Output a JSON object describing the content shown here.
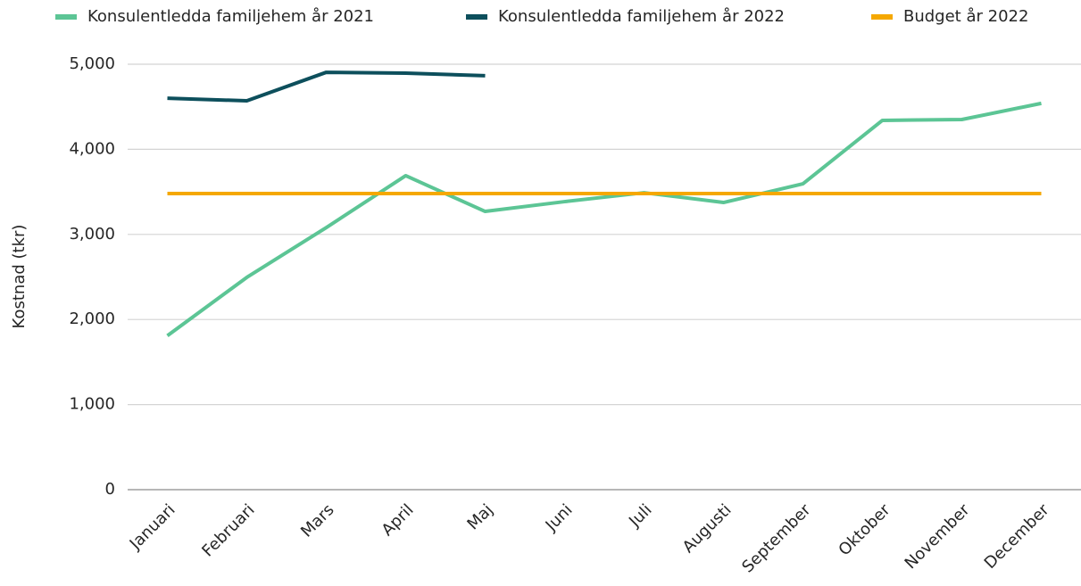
{
  "chart_data": {
    "type": "line",
    "y_label": "Kostnad (tkr)",
    "categories": [
      "Januari",
      "Februari",
      "Mars",
      "April",
      "Maj",
      "Juni",
      "Juli",
      "Augusti",
      "September",
      "Oktober",
      "November",
      "December"
    ],
    "series": [
      {
        "name": "Konsulentledda familjehem år 2021",
        "color": "#5cc595",
        "values": [
          1810,
          2495,
          3080,
          3690,
          3270,
          3385,
          3490,
          3375,
          3595,
          4340,
          4350,
          4540
        ]
      },
      {
        "name": "Konsulentledda familjehem år 2022",
        "color": "#0d4f5c",
        "values": [
          4600,
          4570,
          4905,
          4895,
          4865,
          null,
          null,
          null,
          null,
          null,
          null,
          null
        ]
      },
      {
        "name": "Budget år 2022",
        "color": "#f5a800",
        "values": [
          3480,
          3480,
          3480,
          3480,
          3480,
          3480,
          3480,
          3480,
          3480,
          3480,
          3480,
          3480
        ]
      }
    ],
    "ylim": [
      0,
      5000
    ],
    "yticks": [
      0,
      {
        "value": 1000,
        "label": "1,000"
      },
      {
        "value": 2000,
        "label": "2,000"
      },
      {
        "value": 3000,
        "label": "3,000"
      },
      {
        "value": 4000,
        "label": "4,000"
      },
      {
        "value": 5000,
        "label": "5,000"
      }
    ],
    "grid": true,
    "legend": "top"
  }
}
